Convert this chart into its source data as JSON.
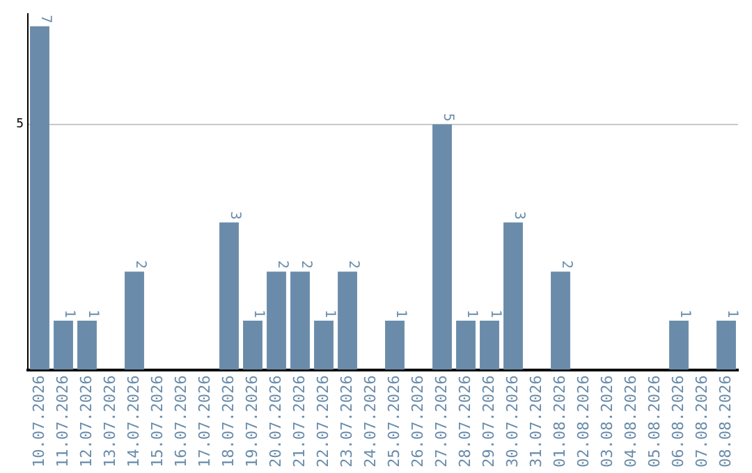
{
  "chart_data": {
    "type": "bar",
    "categories": [
      "10.07.2026",
      "11.07.2026",
      "12.07.2026",
      "13.07.2026",
      "14.07.2026",
      "15.07.2026",
      "16.07.2026",
      "17.07.2026",
      "18.07.2026",
      "19.07.2026",
      "20.07.2026",
      "21.07.2026",
      "22.07.2026",
      "23.07.2026",
      "24.07.2026",
      "25.07.2026",
      "26.07.2026",
      "27.07.2026",
      "28.07.2026",
      "29.07.2026",
      "30.07.2026",
      "31.07.2026",
      "01.08.2026",
      "02.08.2026",
      "03.08.2026",
      "04.08.2026",
      "05.08.2026",
      "06.08.2026",
      "07.08.2026",
      "08.08.2026"
    ],
    "values": [
      7,
      1,
      1,
      0,
      2,
      0,
      0,
      0,
      3,
      1,
      2,
      2,
      1,
      2,
      0,
      1,
      0,
      5,
      1,
      1,
      3,
      0,
      2,
      0,
      0,
      0,
      0,
      1,
      0,
      1
    ],
    "value_labels": [
      "7",
      "1",
      "1",
      null,
      "2",
      null,
      null,
      null,
      "3",
      "1",
      "2",
      "2",
      "1",
      "2",
      null,
      "1",
      null,
      "5",
      "1",
      "1",
      "3",
      null,
      "2",
      null,
      null,
      null,
      null,
      "1",
      null,
      "1"
    ],
    "color": "#6a8caa",
    "ylim": [
      0,
      7.25
    ],
    "yticks": [
      5
    ],
    "grid": "y",
    "legend": false
  }
}
